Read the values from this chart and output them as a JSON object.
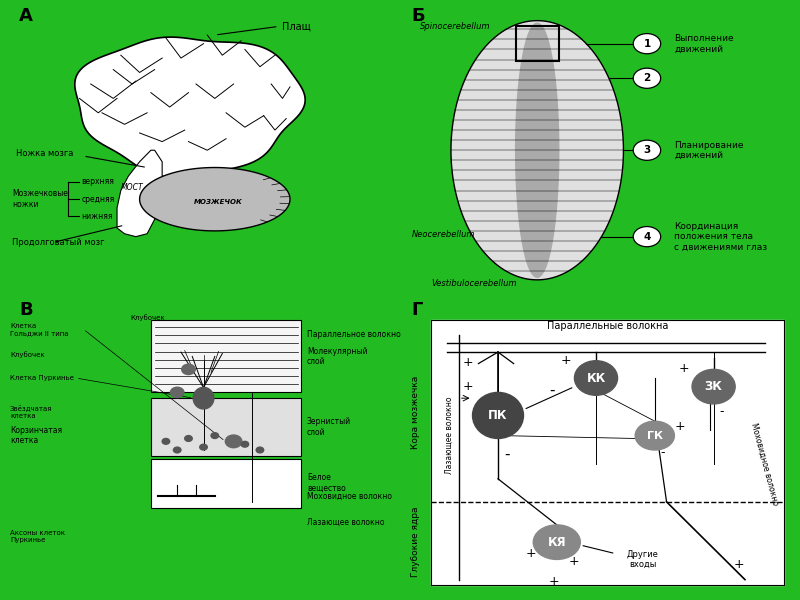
{
  "bg_color": "#22bb22",
  "panel_A_label": "А",
  "panel_B_label": "Б",
  "panel_C_label": "В",
  "panel_D_label": "Г",
  "plash_label": "Плащ",
  "nozhka_label": "Ножка мозга",
  "mozh_nozhki_label": "Мозжечковые\nножки",
  "verkh_label": "верхняя",
  "sredn_label": "средняя",
  "nizhn_label": "нижняя",
  "most_label": "МОСТ",
  "mozzhechok_label": "МОЗЖЕЧОК",
  "prodolg_label": "Продолговатый мозг",
  "spinocereb_label": "Spinocerebellum",
  "neocereb_label": "Neocerebellum",
  "vestibulocereb_label": "Vestibulocerebellum",
  "vypoln_label": "Выполнение\nдвижений",
  "planir_label": "Планирование\nдвижений",
  "koord_label": "Координация\nположения тела\nс движениями глаз",
  "kletka_goldzhi_label": "Клетка\nГольджи II типа",
  "klubochek_label": "Клубочек",
  "kletka_purkinje_label": "Клетка Пуркиньe",
  "parallel_volokno_label": "Параллельное волокно",
  "mol_sloy_label": "Молекулярный\nслой",
  "zern_sloy_label": "Зернистый\nслой",
  "bel_vesh_label": "Белое\nвещество",
  "moh_volokno_label": "Моховидное волокно",
  "aksony_label": "Аксоны клеток\nПуркинье",
  "lazayush_label": "Лазающее волокно",
  "parallel_volokna_top": "Параллельные волокна",
  "kora_mozzhechka": "Кора мозжечка",
  "lazayushie_label": "Лазающее волокно",
  "mohovidnoe_label": "Моховидное волокно",
  "glubokie_yadra": "Глубокие ядра",
  "pk_label": "ПК",
  "kk_label": "КК",
  "zk_label": "ЗК",
  "gk_label": "ГК",
  "kya_label": "КЯ",
  "drugie_vhody": "Другие\nвходы",
  "zvezd_kletka": "Звёздчатая\nклетка",
  "korzin_kletka": "Корзинчатая\nклетка"
}
